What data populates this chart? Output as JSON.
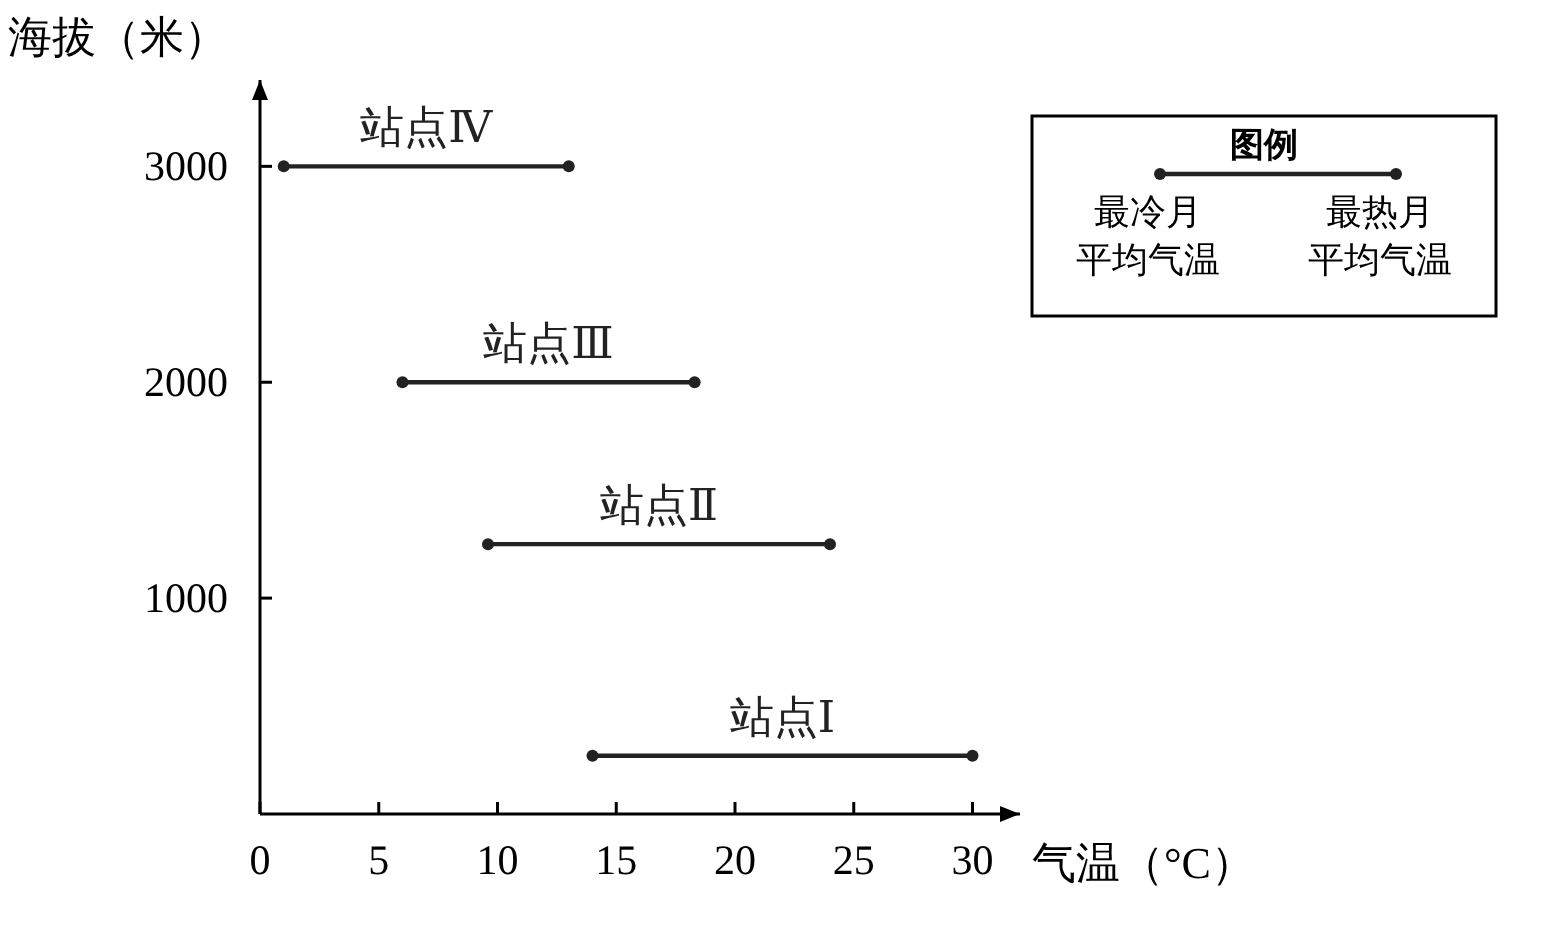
{
  "chart_data": {
    "type": "line",
    "xlabel": "气温（°C）",
    "ylabel": "海拔（米）",
    "legend_title": "图例",
    "marker": "circle",
    "line_style": "solid",
    "grid": false,
    "xlim": [
      0,
      32
    ],
    "xticks": [
      0,
      5,
      10,
      15,
      20,
      25,
      30
    ],
    "ylim": [
      0,
      3400
    ],
    "yticks": [
      1000,
      2000,
      3000
    ],
    "annotations": [
      "最冷月平均气温",
      "最热月平均气温"
    ],
    "series": [
      {
        "name": "站点Ⅳ",
        "color": "#222222",
        "x": [
          1,
          13
        ],
        "values": [
          3000,
          3000
        ]
      },
      {
        "name": "站点Ⅲ",
        "color": "#222222",
        "x": [
          6,
          18.3
        ],
        "values": [
          2000,
          2000
        ]
      },
      {
        "name": "站点Ⅱ",
        "color": "#222222",
        "x": [
          9.6,
          24
        ],
        "values": [
          1250,
          1250
        ]
      },
      {
        "name": "站点Ⅰ",
        "color": "#222222",
        "x": [
          14,
          30
        ],
        "values": [
          270,
          270
        ]
      }
    ]
  }
}
